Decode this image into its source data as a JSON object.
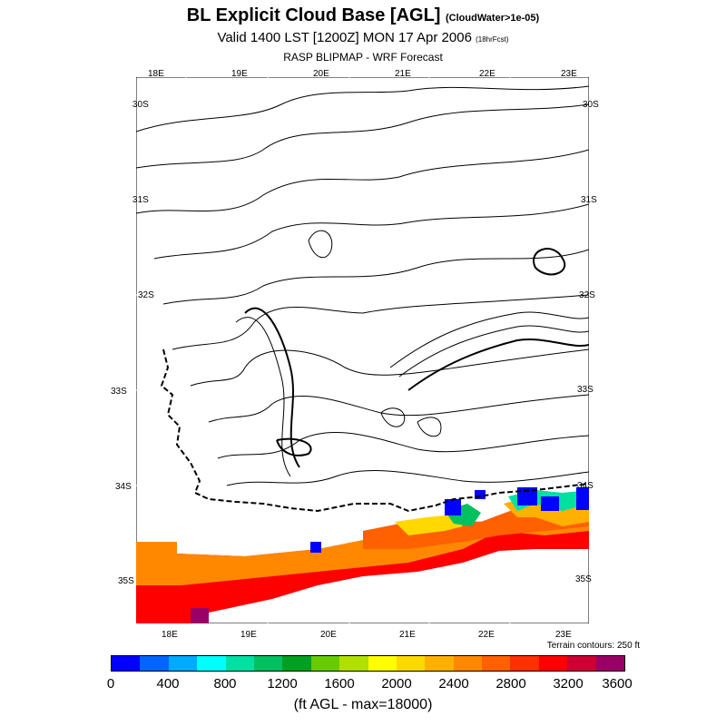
{
  "header": {
    "title": "BL Explicit Cloud Base [AGL]",
    "title_note": "(CloudWater>1e-05)",
    "valid": "Valid 1400 LST [1200Z] MON 17 Apr 2006",
    "valid_note": "(18hrFcst)",
    "source": "RASP BLIPMAP - WRF Forecast"
  },
  "map": {
    "top_lon_labels": [
      "18E",
      "19E",
      "20E",
      "21E",
      "22E",
      "23E"
    ],
    "bottom_lon_labels": [
      "18E",
      "19E",
      "20E",
      "21E",
      "22E",
      "23E"
    ],
    "left_lat_labels": [
      "30S",
      "31S",
      "32S",
      "33S",
      "34S",
      "35S"
    ],
    "right_lat_labels": [
      "30S",
      "31S",
      "32S",
      "33S",
      "34S",
      "35S"
    ],
    "terrain_note": "Terrain contours: 250 ft"
  },
  "colorbar": {
    "colors": [
      "#0000ff",
      "#0066ff",
      "#00aaff",
      "#00ffff",
      "#00e0a0",
      "#00c060",
      "#00a020",
      "#66cc00",
      "#b0e000",
      "#ffff00",
      "#ffd800",
      "#ffb000",
      "#ff8800",
      "#ff6000",
      "#ff3000",
      "#ff0000",
      "#cc0033",
      "#990066"
    ],
    "tick_labels": [
      "0",
      "400",
      "800",
      "1200",
      "1600",
      "2000",
      "2400",
      "2800",
      "3200",
      "3600"
    ],
    "units_label": "(ft AGL - max=18000)"
  }
}
